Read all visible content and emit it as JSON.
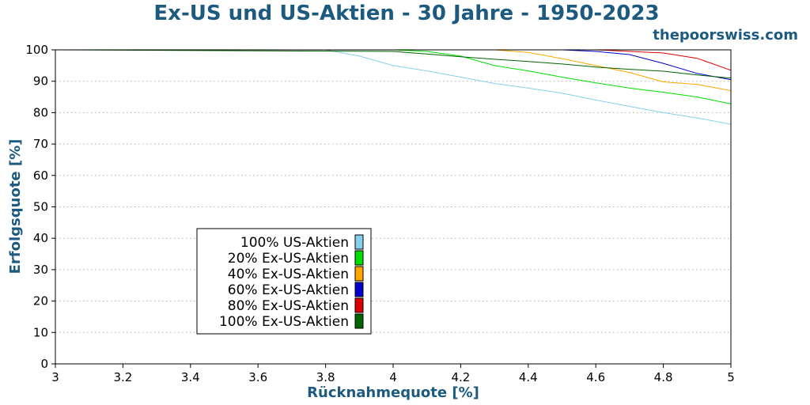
{
  "header": {
    "title": "Ex-US und US-Aktien - 30 Jahre - 1950-2023",
    "brand": "thepoorswiss.com"
  },
  "colors": {
    "text_accent": "#1d5a80",
    "grid": "#b0b0b0"
  },
  "chart_data": {
    "type": "line",
    "title": "Ex-US und US-Aktien - 30 Jahre - 1950-2023",
    "xlabel": "Rücknahmequote [%]",
    "ylabel": "Erfolgsquote [%]",
    "xlim": [
      3,
      5
    ],
    "ylim": [
      0,
      100
    ],
    "x_ticks": [
      "3",
      "3.2",
      "3.4",
      "3.6",
      "3.8",
      "4",
      "4.2",
      "4.4",
      "4.6",
      "4.8",
      "5"
    ],
    "y_ticks": [
      "0",
      "10",
      "20",
      "30",
      "40",
      "50",
      "60",
      "70",
      "80",
      "90",
      "100"
    ],
    "grid": "horizontal dotted",
    "legend_position": "lower-left",
    "series": [
      {
        "name": "100% US-Aktien",
        "color": "#87ceeb",
        "points": [
          [
            3.0,
            100
          ],
          [
            3.8,
            100
          ],
          [
            3.9,
            98
          ],
          [
            4.0,
            95
          ],
          [
            4.1,
            93.3
          ],
          [
            4.2,
            91.3
          ],
          [
            4.3,
            89.3
          ],
          [
            4.4,
            87.8
          ],
          [
            4.5,
            86.2
          ],
          [
            4.6,
            84
          ],
          [
            4.7,
            82
          ],
          [
            4.8,
            80
          ],
          [
            4.9,
            78.3
          ],
          [
            5.0,
            76.3
          ]
        ]
      },
      {
        "name": "20% Ex-US-Aktien",
        "color": "#00dd00",
        "points": [
          [
            3.0,
            100
          ],
          [
            4.0,
            100
          ],
          [
            4.1,
            99.5
          ],
          [
            4.2,
            98
          ],
          [
            4.3,
            95
          ],
          [
            4.4,
            93.3
          ],
          [
            4.5,
            91.3
          ],
          [
            4.6,
            89.5
          ],
          [
            4.7,
            87.8
          ],
          [
            4.8,
            86.5
          ],
          [
            4.9,
            85
          ],
          [
            5.0,
            82.8
          ]
        ]
      },
      {
        "name": "40% Ex-US-Aktien",
        "color": "#ffa500",
        "points": [
          [
            3.0,
            100
          ],
          [
            4.3,
            100
          ],
          [
            4.4,
            99.2
          ],
          [
            4.5,
            97.2
          ],
          [
            4.6,
            95
          ],
          [
            4.7,
            92.8
          ],
          [
            4.8,
            89.8
          ],
          [
            4.9,
            89
          ],
          [
            5.0,
            87
          ]
        ]
      },
      {
        "name": "60% Ex-US-Aktien",
        "color": "#0000cc",
        "points": [
          [
            3.0,
            100
          ],
          [
            4.5,
            100
          ],
          [
            4.6,
            99.5
          ],
          [
            4.7,
            98.5
          ],
          [
            4.8,
            95.7
          ],
          [
            4.9,
            92.5
          ],
          [
            5.0,
            90.5
          ]
        ]
      },
      {
        "name": "80% Ex-US-Aktien",
        "color": "#dd0000",
        "points": [
          [
            3.0,
            100
          ],
          [
            4.6,
            100
          ],
          [
            4.7,
            99.5
          ],
          [
            4.8,
            99
          ],
          [
            4.9,
            97.3
          ],
          [
            5.0,
            93.5
          ]
        ]
      },
      {
        "name": "100% Ex-US-Aktien",
        "color": "#006400",
        "points": [
          [
            3.0,
            100
          ],
          [
            4.0,
            99.5
          ],
          [
            4.1,
            98.7
          ],
          [
            4.2,
            97.8
          ],
          [
            4.3,
            97
          ],
          [
            4.4,
            96.3
          ],
          [
            4.5,
            95.5
          ],
          [
            4.6,
            94.5
          ],
          [
            4.7,
            93.8
          ],
          [
            4.8,
            93.2
          ],
          [
            4.9,
            92
          ],
          [
            5.0,
            91
          ]
        ]
      }
    ]
  }
}
